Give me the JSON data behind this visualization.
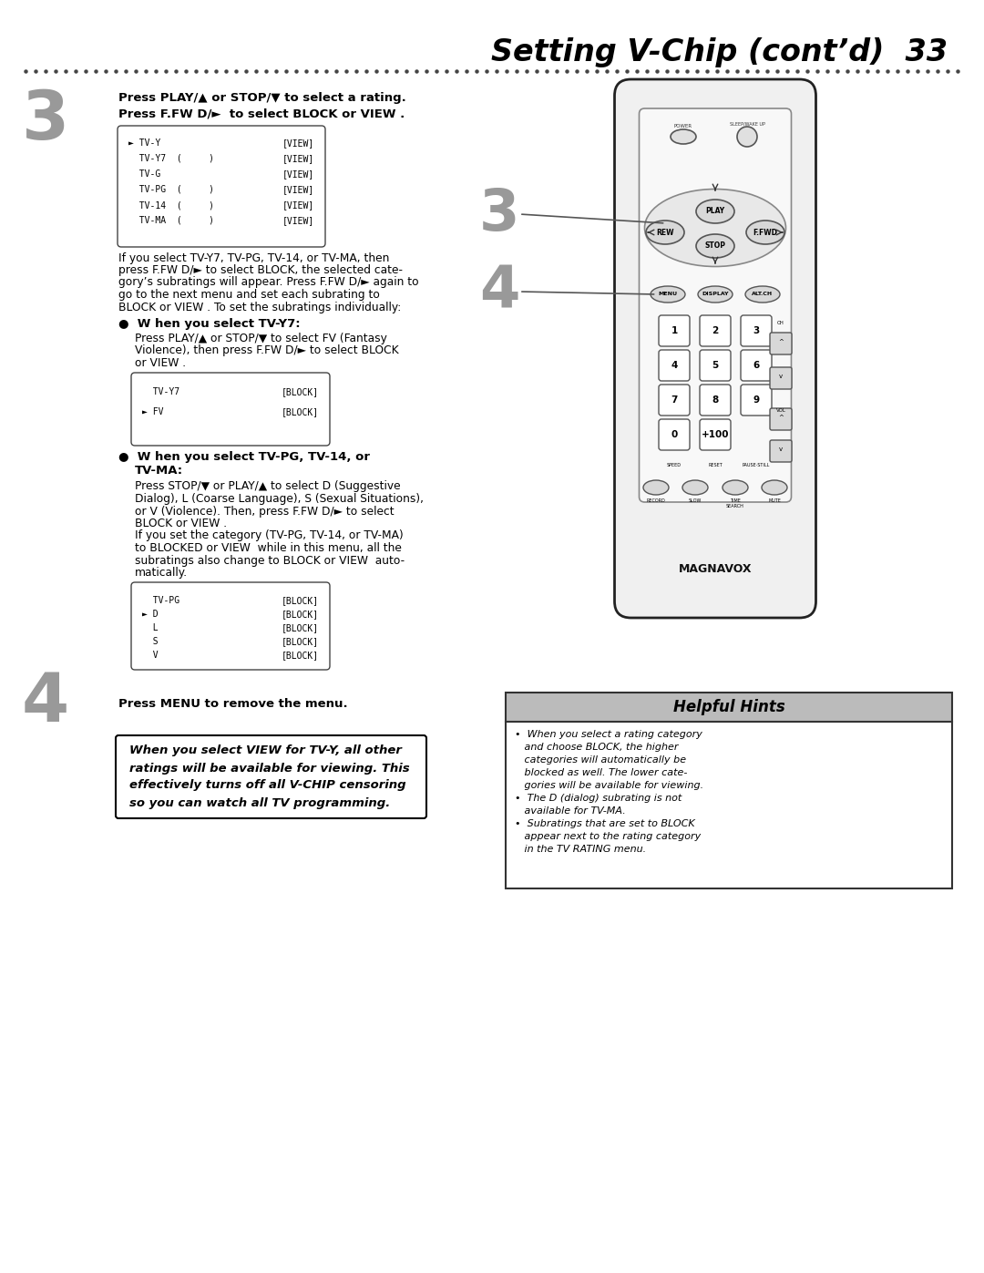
{
  "title": "Setting V-Chip (cont’d)  33",
  "bg_color": "#ffffff",
  "step3_instruction1": "Press PLAY/▲ or STOP/▼ to select a rating.",
  "step3_instruction2": "Press F.FW D/►  to select BLOCK or VIEW .",
  "box1_entries": [
    [
      "► TV-Y",
      "[VIEW]"
    ],
    [
      "  TV-Y7  (     )",
      "[VIEW]"
    ],
    [
      "  TV-G",
      "[VIEW]"
    ],
    [
      "  TV-PG  (     )",
      "[VIEW]"
    ],
    [
      "  TV-14  (     )",
      "[VIEW]"
    ],
    [
      "  TV-MA  (     )",
      "[VIEW]"
    ]
  ],
  "para1_lines": [
    "If you select TV-Y7, TV-PG, TV-14, or TV-MA, then",
    "press F.FW D/► to select BLOCK, the selected cate-",
    "gory’s subratings will appear. Press F.FW D/► again to",
    "go to the next menu and set each subrating to",
    "BLOCK or VIEW . To set the subratings individually:"
  ],
  "bullet1_title": "●  W hen you select TV-Y7:",
  "bullet1_lines": [
    "Press PLAY/▲ or STOP/▼ to select FV (Fantasy",
    "Violence), then press F.FW D/► to select BLOCK",
    "or VIEW ."
  ],
  "box2_entries": [
    [
      "  TV-Y7",
      "[BLOCK]"
    ],
    [
      "► FV",
      "[BLOCK]"
    ]
  ],
  "bullet2_title1": "●  W hen you select TV-PG, TV-14, or",
  "bullet2_title2": "    TV-MA:",
  "bullet2_lines": [
    "Press STOP/▼ or PLAY/▲ to select D (Suggestive",
    "Dialog), L (Coarse Language), S (Sexual Situations),",
    "or V (Violence). Then, press F.FW D/► to select",
    "BLOCK or VIEW .",
    "If you set the category (TV-PG, TV-14, or TV-MA)",
    "to BLOCKED or VIEW  while in this menu, all the",
    "subratings also change to BLOCK or VIEW  auto-",
    "matically."
  ],
  "box3_entries": [
    [
      "  TV-PG",
      "[BLOCK]"
    ],
    [
      "► D",
      "[BLOCK]"
    ],
    [
      "  L",
      "[BLOCK]"
    ],
    [
      "  S",
      "[BLOCK]"
    ],
    [
      "  V",
      "[BLOCK]"
    ]
  ],
  "step4_instruction": "Press MENU to remove the menu.",
  "italic_box_lines": [
    "When you select VIEW for TV-Y, all other",
    "ratings will be available for viewing. This",
    "effectively turns off all V-CHIP censoring",
    "so you can watch all TV programming."
  ],
  "helpful_title": "Helpful Hints",
  "helpful_body_lines": [
    "•  When you select a rating category",
    "   and choose BLOCK, the higher",
    "   categories will automatically be",
    "   blocked as well. The lower cate-",
    "   gories will be available for viewing.",
    "•  The D (dialog) subrating is not",
    "   available for TV-MA.",
    "•  Subratings that are set to BLOCK",
    "   appear next to the rating category",
    "   in the TV RATING menu."
  ],
  "remote_body_color": "#f0f0f0",
  "remote_border_color": "#222222",
  "remote_btn_color": "#e8e8e8",
  "remote_numpad_color": "#ffffff"
}
